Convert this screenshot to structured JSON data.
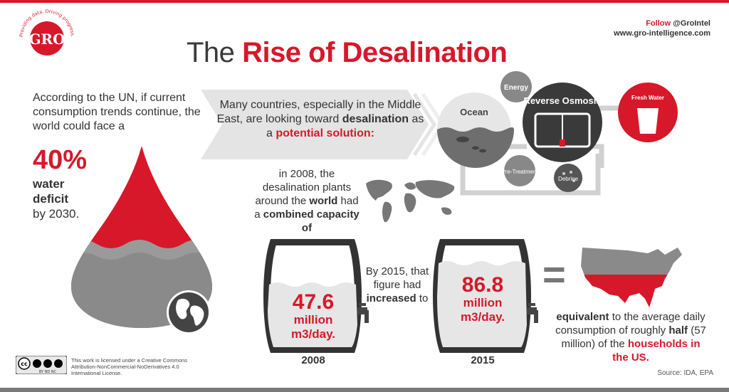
{
  "header": {
    "title_plain": "The",
    "title_accent": "Rise of Desalination",
    "follow_label": "Follow",
    "follow_handle": "@GroIntel",
    "website": "www.gro-intelligence.com"
  },
  "logo": {
    "text": "GRO",
    "tagline": "Providing data. Driving progress."
  },
  "intro": {
    "line": "According to the UN, if current consumption trends continue, the world could face a",
    "stat": "40%",
    "stat_label": "water deficit",
    "tail": "by 2030."
  },
  "arrow_banner": {
    "text_before": "Many countries, especially in the Middle East, are looking toward",
    "bold": "desalination",
    "text_mid": "as a",
    "accent": "potential solution:"
  },
  "process": {
    "ocean": "Ocean",
    "energy": "Energy",
    "reverse_osmosis": "Reverse Osmosis",
    "fresh_water": "Fresh Water",
    "pretreatment": "Pre-Treatment",
    "debrine": "Debrine"
  },
  "capacity_2008": {
    "text_a": "in 2008, the desalination plants around the",
    "bold_world": "world",
    "text_b": "had a",
    "bold_combined": "combined capacity of",
    "value": "47.6",
    "unit_1": "million",
    "unit_2": "m3/day.",
    "year": "2008"
  },
  "capacity_2015": {
    "text_a": "By 2015, that figure had",
    "bold": "increased",
    "text_b": "to",
    "value": "86.8",
    "unit_1": "million",
    "unit_2": "m3/day.",
    "year": "2015"
  },
  "equivalence": {
    "symbol": "=",
    "bold_a": "equivalent",
    "text_a": "to the average daily consumption of roughly",
    "bold_half": "half",
    "text_b": "(57 million) of the",
    "accent": "households in the US."
  },
  "footer": {
    "license": "This work is licensed under a Creative Commons Attribution-NonCommercial-NoDerivatives 4.0 International License.",
    "cc_badge": "cc",
    "cc_sub": "BY  ND  NC",
    "source": "Source: IDA, EPA"
  },
  "colors": {
    "accent": "#d7182a",
    "dark": "#3a3a3a",
    "gray": "#8a8a8a"
  }
}
